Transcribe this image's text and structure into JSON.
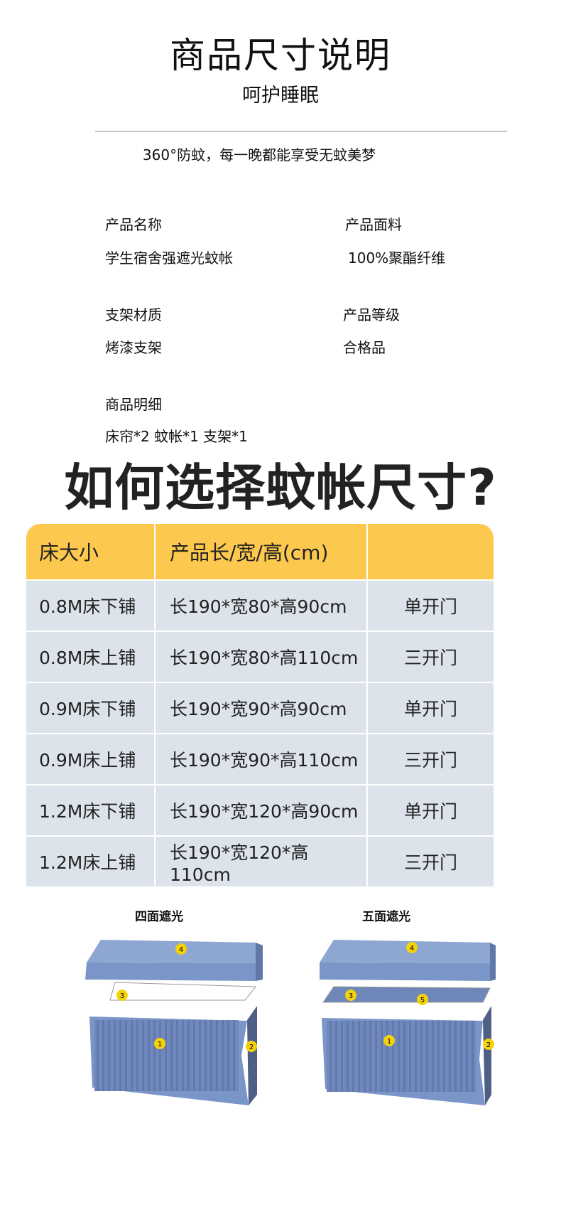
{
  "header": {
    "title": "商品尺寸说明",
    "subtitle": "呵护睡眠",
    "tagline": "360°防蚊，每一晚都能享受无蚊美梦"
  },
  "specs": [
    {
      "label": "产品名称",
      "value": "学生宿舍强遮光蚊帐"
    },
    {
      "label": "产品面料",
      "value": "100%聚酯纤维"
    },
    {
      "label": "支架材质",
      "value": "烤漆支架"
    },
    {
      "label": "产品等级",
      "value": "合格品"
    },
    {
      "label": "商品明细",
      "value": "床帘*2 蚊帐*1 支架*1"
    }
  ],
  "size_guide": {
    "title": "如何选择蚊帐尺寸?",
    "headers": [
      "床大小",
      "产品长/宽/高(cm)",
      ""
    ],
    "rows": [
      [
        "0.8M床下铺",
        "长190*宽80*高90cm",
        "单开门"
      ],
      [
        "0.8M床上铺",
        "长190*宽80*高110cm",
        "三开门"
      ],
      [
        "0.9M床下铺",
        "长190*宽90*高90cm",
        "单开门"
      ],
      [
        "0.9M床上铺",
        "长190*宽90*高110cm",
        "三开门"
      ],
      [
        "1.2M床下铺",
        "长190*宽120*高90cm",
        "单开门"
      ],
      [
        "1.2M床上铺",
        "长190*宽120*高110cm",
        "三开门"
      ]
    ],
    "header_color": "#fcc84d",
    "row_color": "#dde3eb"
  },
  "illustrations": [
    {
      "label": "四面遮光",
      "markers": [
        "1",
        "2",
        "3",
        "4"
      ]
    },
    {
      "label": "五面遮光",
      "markers": [
        "1",
        "2",
        "3",
        "4",
        "5"
      ]
    }
  ],
  "colors": {
    "panel": "#7a96c8",
    "marker": "#f5d20a"
  }
}
